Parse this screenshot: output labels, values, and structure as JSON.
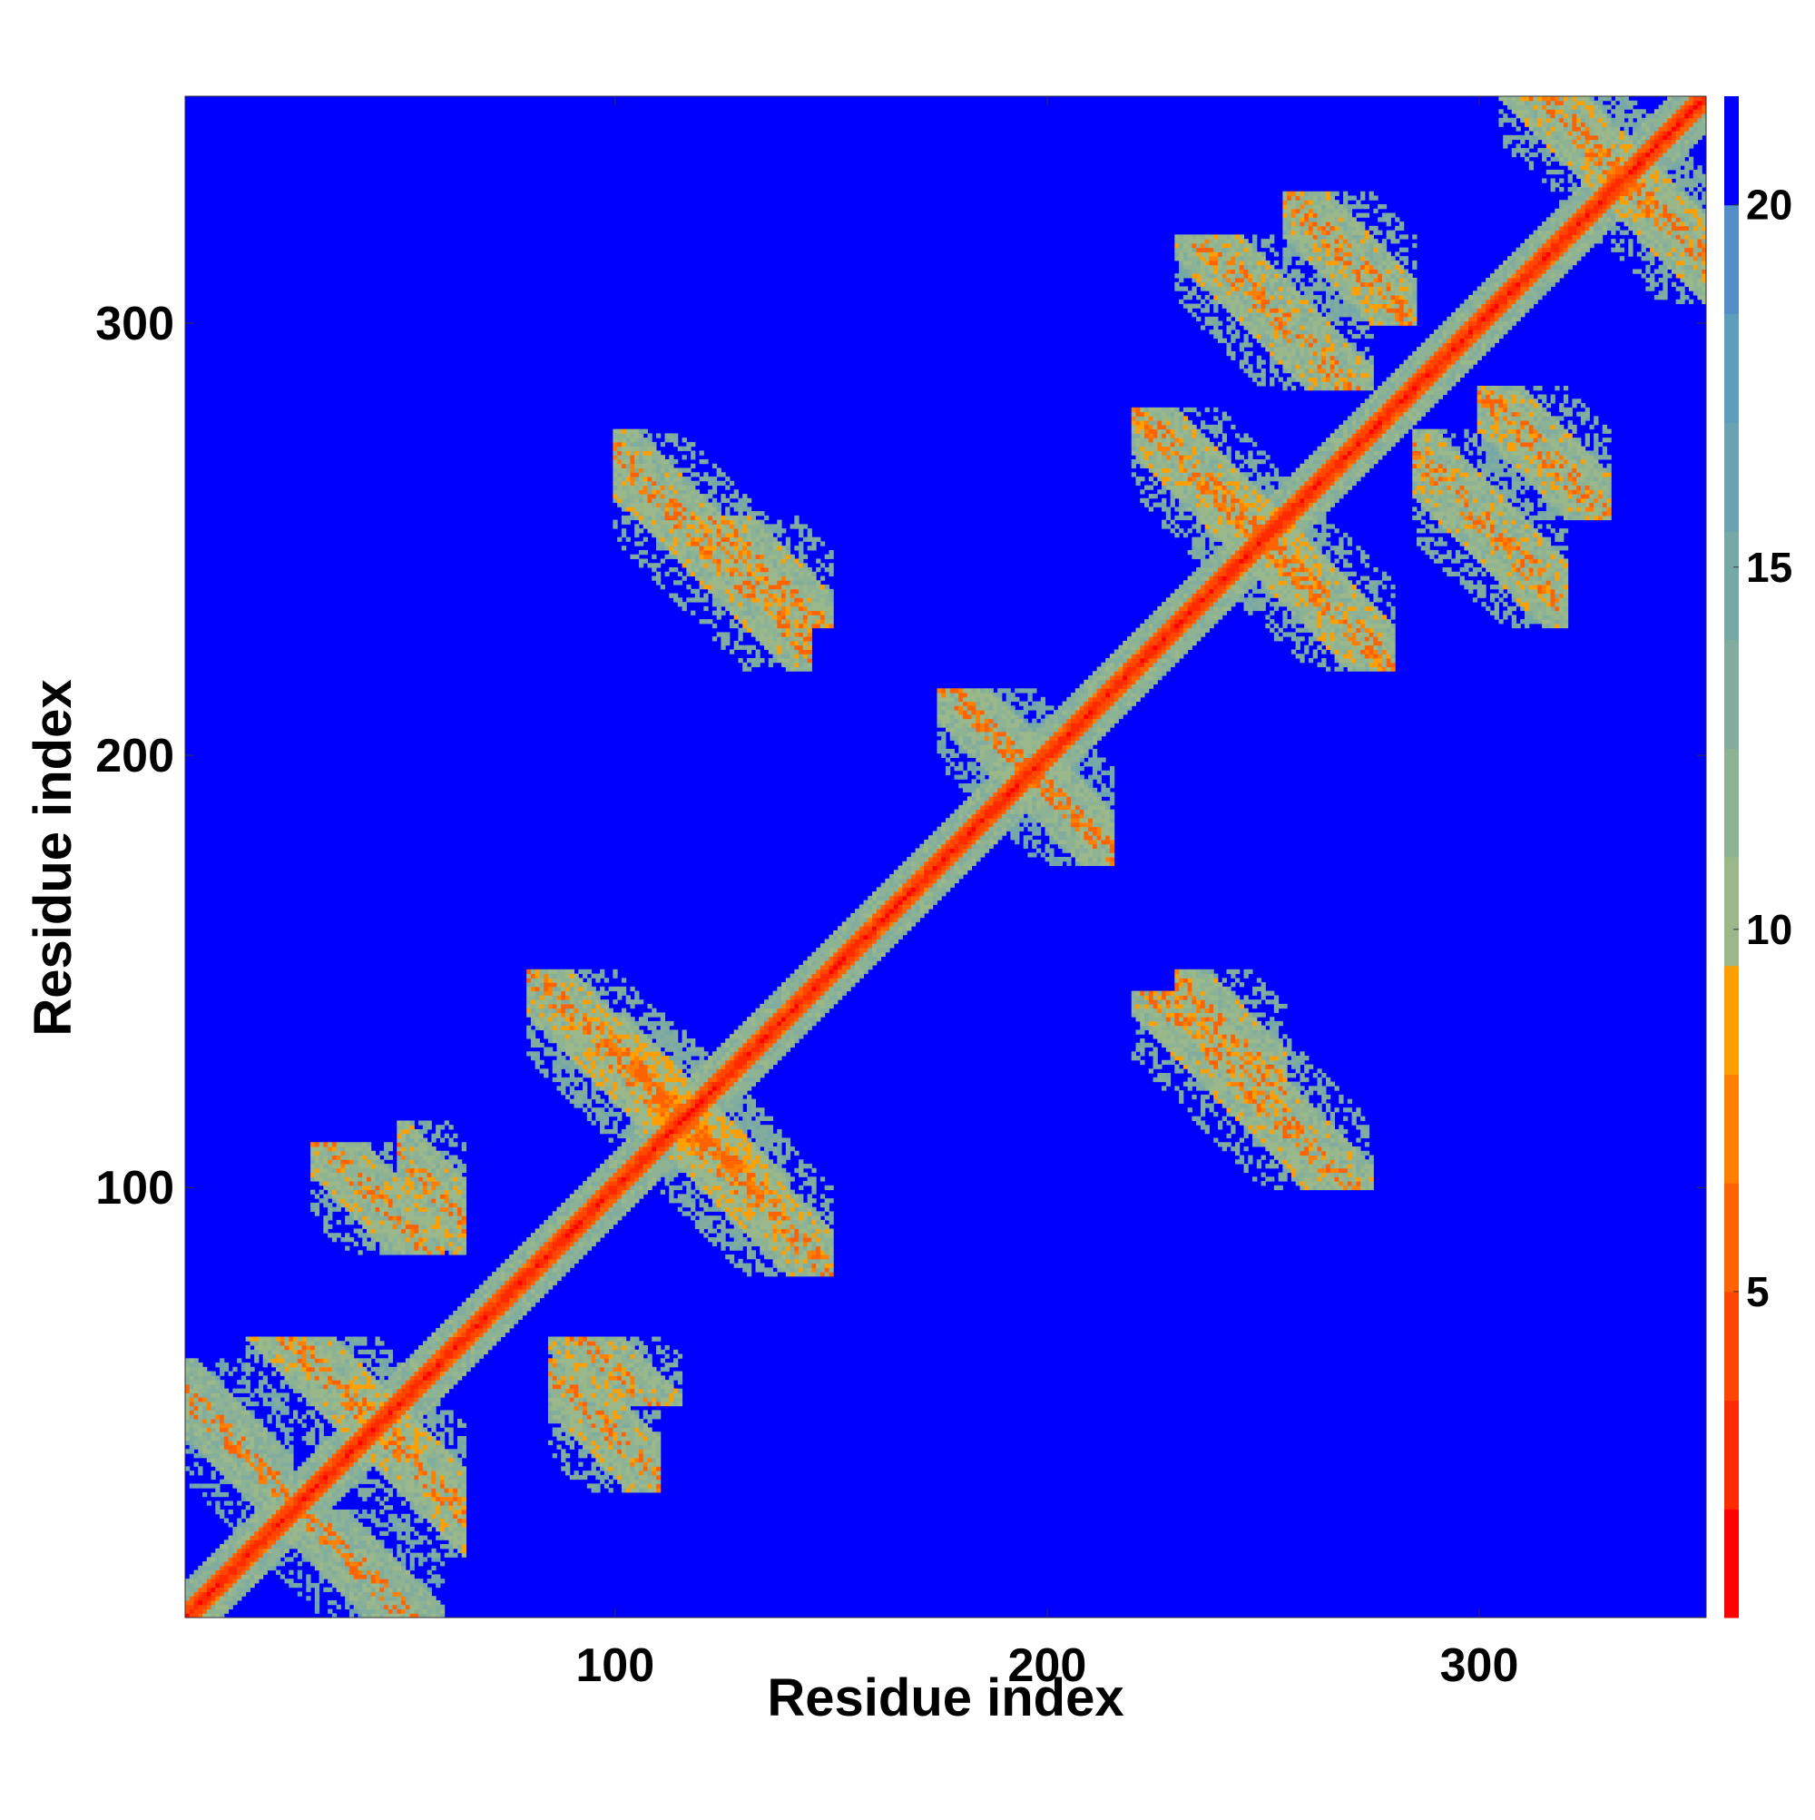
{
  "chart_data": {
    "type": "heatmap",
    "title": "",
    "xlabel": "Residue index",
    "ylabel": "Residue index",
    "xlim": [
      1,
      352
    ],
    "ylim": [
      1,
      352
    ],
    "xticks": [
      100,
      200,
      300
    ],
    "yticks": [
      100,
      200,
      300
    ],
    "colorbar": {
      "ticks": [
        5,
        10,
        15,
        20
      ],
      "range": [
        0.5,
        21.5
      ],
      "colors": [
        "#ff0000",
        "#ff2a00",
        "#ff4600",
        "#ff6200",
        "#ff8000",
        "#ffa000",
        "#9ab88a",
        "#8eb394",
        "#82ad9e",
        "#76a8a8",
        "#6aa2b2",
        "#5e9dbc",
        "#528fc6",
        "#0000ff"
      ]
    },
    "background_value": 21,
    "diagonal": {
      "core_value": 1.5,
      "inner_halfwidth": 3,
      "band_value": 12,
      "band_halfwidth": 8
    },
    "contact_blocks": [
      {
        "i_range": [
          15,
          60
        ],
        "j_range": [
          40,
          65
        ],
        "orientation": "antiparallel",
        "value": 11
      },
      {
        "i_range": [
          1,
          25
        ],
        "j_range": [
          20,
          60
        ],
        "orientation": "antiparallel",
        "value": 12
      },
      {
        "i_range": [
          30,
          60
        ],
        "j_range": [
          85,
          110
        ],
        "orientation": "antiparallel",
        "value": 11
      },
      {
        "i_range": [
          85,
          135
        ],
        "j_range": [
          105,
          140
        ],
        "orientation": "antiparallel",
        "value": 11
      },
      {
        "i_range": [
          85,
          115
        ],
        "j_range": [
          50,
          65
        ],
        "orientation": "antiparallel",
        "value": 11
      },
      {
        "i_range": [
          110,
          150
        ],
        "j_range": [
          80,
          120
        ],
        "orientation": "antiparallel",
        "value": 11
      },
      {
        "i_range": [
          120,
          150
        ],
        "j_range": [
          230,
          255
        ],
        "orientation": "antiparallel",
        "value": 11
      },
      {
        "i_range": [
          220,
          275
        ],
        "j_range": [
          100,
          145
        ],
        "orientation": "antiparallel",
        "value": 11
      },
      {
        "i_range": [
          220,
          265
        ],
        "j_range": [
          235,
          280
        ],
        "orientation": "antiparallel",
        "value": 11
      },
      {
        "i_range": [
          255,
          285
        ],
        "j_range": [
          300,
          330
        ],
        "orientation": "antiparallel",
        "value": 11
      },
      {
        "i_range": [
          285,
          320
        ],
        "j_range": [
          230,
          275
        ],
        "orientation": "antiparallel",
        "value": 11
      },
      {
        "i_range": [
          305,
          352
        ],
        "j_range": [
          325,
          352
        ],
        "orientation": "antiparallel",
        "value": 11
      },
      {
        "i_range": [
          175,
          215
        ],
        "j_range": [
          180,
          215
        ],
        "orientation": "antiparallel",
        "value": 12
      }
    ],
    "grid": false,
    "legend": "colorbar-right"
  }
}
